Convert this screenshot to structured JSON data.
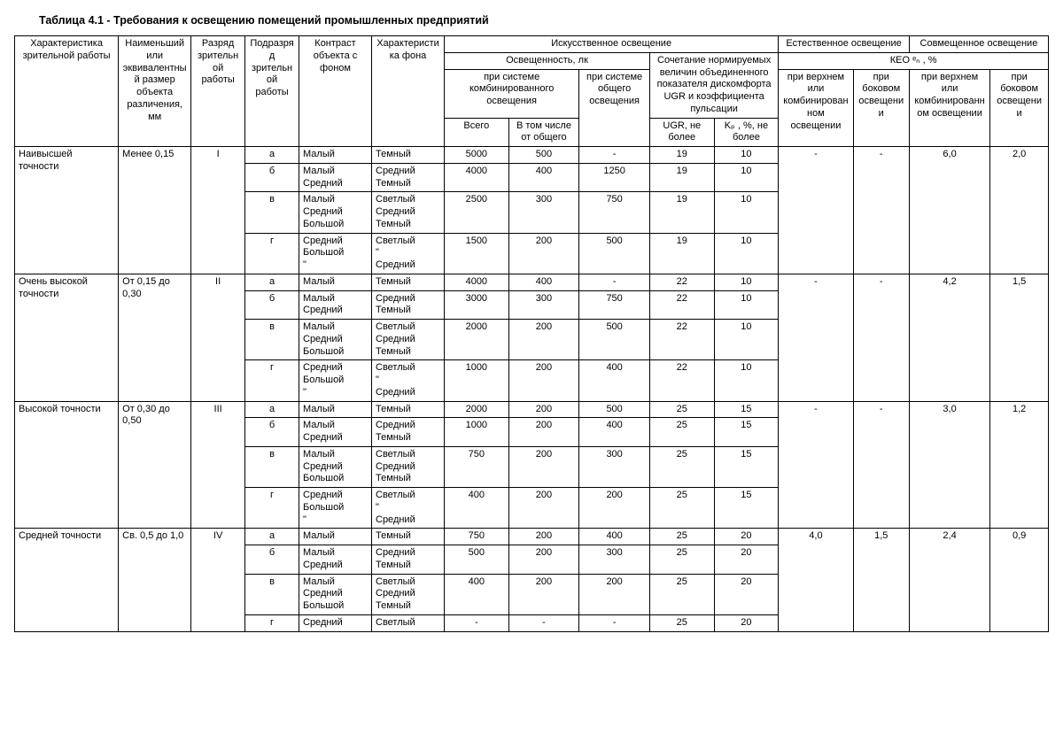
{
  "title": "Таблица 4.1 - Требования к освещению помещений промышленных предприятий",
  "head": {
    "h1": "Характеристика зрительной работы",
    "h2": "Наименьший или эквивалентный размер объекта различения, мм",
    "h3": "Разряд зрительной работы",
    "h4": "Подразряд зрительной работы",
    "h5": "Контраст объекта с фоном",
    "h6": "Характеристика фона",
    "h7": "Искусственное освещение",
    "h8": "Естественное освещение",
    "h9": "Совмещенное освещение",
    "h10": "Освещенность, лк",
    "h11": "Сочетание нормируемых величин объединенного показателя дискомфорта UGR и коэффициента пульсации",
    "h12": "КЕО ᵉₙ , %",
    "h13": "при системе комбинированного освещения",
    "h14": "при системе общего освещения",
    "h15": "при верхнем или комбинированном освещении",
    "h16": "при боковом освещении",
    "h17": "при верхнем или комбинированном освещении",
    "h18": "при боковом освещении",
    "h19": "Всего",
    "h20": "В том числе от общего",
    "h21": "UGR, не более",
    "h22": "Kₚ , %, не более"
  },
  "groups": [
    {
      "name": "Наивысшей точности",
      "size": "Менее 0,15",
      "class": "I",
      "nat1": "-",
      "nat2": "-",
      "comb1": "6,0",
      "comb2": "2,0",
      "rows": [
        {
          "sub": "а",
          "contrast": "Малый",
          "bg": "Темный",
          "total": "5000",
          "fromgen": "500",
          "gen": "-",
          "ugr": "19",
          "kp": "10"
        },
        {
          "sub": "б",
          "contrast": "Малый\nСредний",
          "bg": "Средний\nТемный",
          "total": "4000",
          "fromgen": "400",
          "gen": "1250",
          "ugr": "19",
          "kp": "10"
        },
        {
          "sub": "в",
          "contrast": "Малый\nСредний\nБольшой",
          "bg": "Светлый\nСредний\nТемный",
          "total": "2500",
          "fromgen": "300",
          "gen": "750",
          "ugr": "19",
          "kp": "10"
        },
        {
          "sub": "г",
          "contrast": "Средний\nБольшой\n\"",
          "bg": "Светлый\n\"\nСредний",
          "total": "1500",
          "fromgen": "200",
          "gen": "500",
          "ugr": "19",
          "kp": "10"
        }
      ]
    },
    {
      "name": "Очень высокой точности",
      "size": "От 0,15 до 0,30",
      "class": "II",
      "nat1": "-",
      "nat2": "-",
      "comb1": "4,2",
      "comb2": "1,5",
      "rows": [
        {
          "sub": "а",
          "contrast": "Малый",
          "bg": "Темный",
          "total": "4000",
          "fromgen": "400",
          "gen": "-",
          "ugr": "22",
          "kp": "10"
        },
        {
          "sub": "б",
          "contrast": "Малый\nСредний",
          "bg": "Средний\nТемный",
          "total": "3000",
          "fromgen": "300",
          "gen": "750",
          "ugr": "22",
          "kp": "10"
        },
        {
          "sub": "в",
          "contrast": "Малый\nСредний\nБольшой",
          "bg": "Светлый\nСредний\nТемный",
          "total": "2000",
          "fromgen": "200",
          "gen": "500",
          "ugr": "22",
          "kp": "10"
        },
        {
          "sub": "г",
          "contrast": "Средний\nБольшой\n\"",
          "bg": "Светлый\n\"\nСредний",
          "total": "1000",
          "fromgen": "200",
          "gen": "400",
          "ugr": "22",
          "kp": "10"
        }
      ]
    },
    {
      "name": "Высокой точности",
      "size": "От 0,30 до 0,50",
      "class": "III",
      "nat1": "-",
      "nat2": "-",
      "comb1": "3,0",
      "comb2": "1,2",
      "rows": [
        {
          "sub": "а",
          "contrast": "Малый",
          "bg": "Темный",
          "total": "2000",
          "fromgen": "200",
          "gen": "500",
          "ugr": "25",
          "kp": "15"
        },
        {
          "sub": "б",
          "contrast": "Малый\nСредний",
          "bg": "Средний\nТемный",
          "total": "1000",
          "fromgen": "200",
          "gen": "400",
          "ugr": "25",
          "kp": "15"
        },
        {
          "sub": "в",
          "contrast": "Малый\nСредний\nБольшой",
          "bg": "Светлый\nСредний\nТемный",
          "total": "750",
          "fromgen": "200",
          "gen": "300",
          "ugr": "25",
          "kp": "15"
        },
        {
          "sub": "г",
          "contrast": "Средний\nБольшой\n\"",
          "bg": "Светлый\n\"\nСредний",
          "total": "400",
          "fromgen": "200",
          "gen": "200",
          "ugr": "25",
          "kp": "15"
        }
      ]
    },
    {
      "name": "Средней точности",
      "size": "Св. 0,5 до 1,0",
      "class": "IV",
      "nat1": "4,0",
      "nat2": "1,5",
      "comb1": "2,4",
      "comb2": "0,9",
      "rows": [
        {
          "sub": "а",
          "contrast": "Малый",
          "bg": "Темный",
          "total": "750",
          "fromgen": "200",
          "gen": "400",
          "ugr": "25",
          "kp": "20"
        },
        {
          "sub": "б",
          "contrast": "Малый\nСредний",
          "bg": "Средний\nТемный",
          "total": "500",
          "fromgen": "200",
          "gen": "300",
          "ugr": "25",
          "kp": "20"
        },
        {
          "sub": "в",
          "contrast": "Малый\nСредний\nБольшой",
          "bg": "Светлый\nСредний\nТемный",
          "total": "400",
          "fromgen": "200",
          "gen": "200",
          "ugr": "25",
          "kp": "20"
        },
        {
          "sub": "г",
          "contrast": "Средний",
          "bg": "Светлый",
          "total": "-",
          "fromgen": "-",
          "gen": "-",
          "ugr": "25",
          "kp": "20"
        }
      ]
    }
  ]
}
